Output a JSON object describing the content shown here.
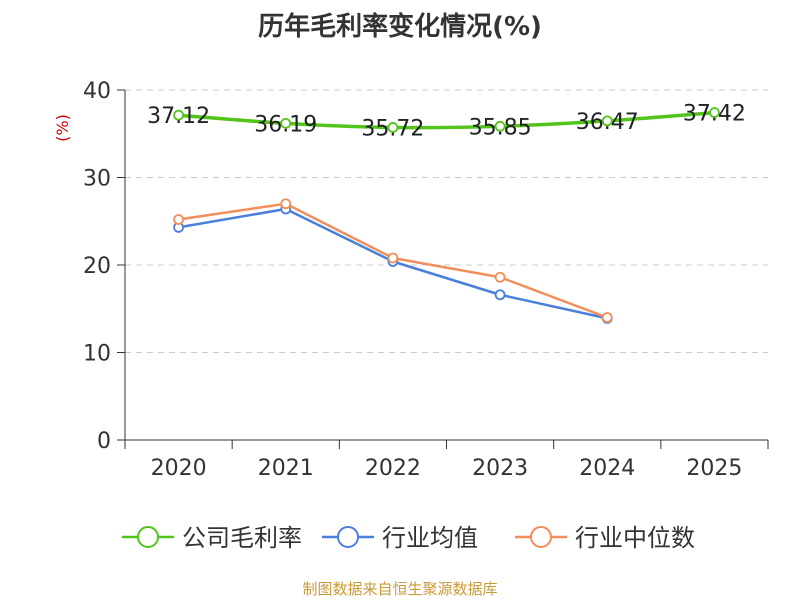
{
  "chart_data": {
    "type": "line",
    "title": "历年毛利率变化情况(%)",
    "ylabel": "(%)",
    "ylim": [
      0,
      40
    ],
    "yticks": [
      0,
      10,
      20,
      30,
      40
    ],
    "categories": [
      "2020",
      "2021",
      "2022",
      "2023",
      "2024",
      "2025"
    ],
    "series": [
      {
        "name": "公司毛利率",
        "color": "#52c41a",
        "values": [
          37.12,
          36.19,
          35.72,
          35.85,
          36.47,
          37.42
        ],
        "labels": [
          "37.12",
          "36.19",
          "35.72",
          "35.85",
          "36.47",
          "37.42"
        ]
      },
      {
        "name": "行业均值",
        "color": "#4a7fdb",
        "values": [
          24.3,
          26.4,
          20.4,
          16.6,
          13.9,
          null
        ]
      },
      {
        "name": "行业中位数",
        "color": "#f28e5b",
        "values": [
          25.2,
          27.0,
          20.8,
          18.6,
          14.0,
          null
        ]
      }
    ],
    "grid": true,
    "legend_position": "bottom"
  },
  "source": "制图数据来自恒生聚源数据库"
}
